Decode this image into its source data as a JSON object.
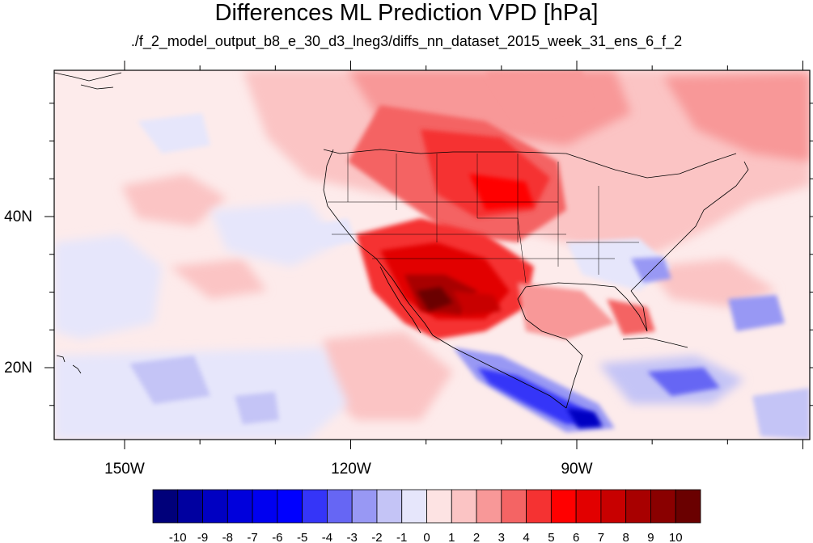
{
  "title": "Differences ML Prediction VPD [hPa]",
  "subtitle": "./f_2_model_output_b8_e_30_d3_lneg3/diffs_nn_dataset_2015_week_31_ens_6_f_2",
  "map": {
    "ocean_base_color": "#fdebeb",
    "lat_labels": [
      "40N",
      "20N"
    ],
    "lon_labels": [
      "150W",
      "120W",
      "90W"
    ]
  },
  "colorbar": {
    "levels": [
      "-10",
      "-9",
      "-8",
      "-7",
      "-6",
      "-5",
      "-4",
      "-3",
      "-2",
      "-1",
      "0",
      "1",
      "2",
      "3",
      "4",
      "5",
      "6",
      "7",
      "8",
      "9",
      "10"
    ],
    "colors": [
      "#00007a",
      "#0000a0",
      "#0000c2",
      "#0000dc",
      "#0000f0",
      "#0000ff",
      "#3535f8",
      "#6666f4",
      "#9898f4",
      "#c4c4f6",
      "#e6e6fb",
      "#fde3e3",
      "#fbc4c4",
      "#f89898",
      "#f46464",
      "#f53232",
      "#ff0000",
      "#e20000",
      "#c80000",
      "#a80000",
      "#8a0000",
      "#6a0000"
    ]
  }
}
